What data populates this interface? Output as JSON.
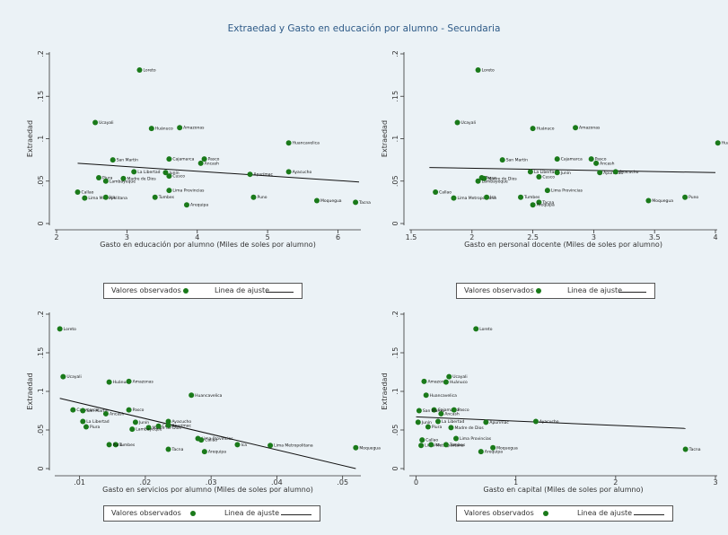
{
  "title": "Extraedad y Gasto en educación por alumno - Secundaria",
  "legend": {
    "observed": "Valores observados",
    "fit": "Linea de ajuste"
  },
  "colors": {
    "background": "#ebf2f6",
    "points": "#1a7a1a",
    "fit_line": "#111111",
    "title": "#2e5a87"
  },
  "chart_data": [
    {
      "type": "scatter",
      "xlabel": "Gasto en educación por alumno (Miles de soles por alumno)",
      "ylabel": "Extraedad",
      "xlim": [
        2,
        6.3
      ],
      "ylim": [
        0,
        0.2
      ],
      "xticks": [
        "2",
        "3",
        "4",
        "5",
        "6"
      ],
      "yticks": [
        "0",
        ".05",
        ".1",
        ".15",
        ".2"
      ],
      "fit_line": [
        [
          2.3,
          0.071
        ],
        [
          6.3,
          0.049
        ]
      ],
      "points": [
        {
          "label": "Loreto",
          "x": 3.18,
          "y": 0.181
        },
        {
          "label": "Ucayali",
          "x": 2.55,
          "y": 0.119
        },
        {
          "label": "Huánuco",
          "x": 3.35,
          "y": 0.112
        },
        {
          "label": "Amazonas",
          "x": 3.75,
          "y": 0.113
        },
        {
          "label": "Huancavelica",
          "x": 5.3,
          "y": 0.095
        },
        {
          "label": "San Martín",
          "x": 2.8,
          "y": 0.075
        },
        {
          "label": "Cajamarca",
          "x": 3.6,
          "y": 0.076
        },
        {
          "label": "Pasco",
          "x": 4.1,
          "y": 0.076
        },
        {
          "label": "Ancash",
          "x": 4.05,
          "y": 0.071
        },
        {
          "label": "La Libertad",
          "x": 3.1,
          "y": 0.061
        },
        {
          "label": "Junín",
          "x": 3.55,
          "y": 0.06
        },
        {
          "label": "Cusco",
          "x": 3.6,
          "y": 0.056
        },
        {
          "label": "Apurímac",
          "x": 4.75,
          "y": 0.058
        },
        {
          "label": "Ayacucho",
          "x": 5.3,
          "y": 0.061
        },
        {
          "label": "Piura",
          "x": 2.6,
          "y": 0.054
        },
        {
          "label": "Madre de Dios",
          "x": 2.95,
          "y": 0.053
        },
        {
          "label": "Lambayeque",
          "x": 2.7,
          "y": 0.05
        },
        {
          "label": "Lima Provincias",
          "x": 3.6,
          "y": 0.039
        },
        {
          "label": "Callao",
          "x": 2.3,
          "y": 0.037
        },
        {
          "label": "Lima Metropolitana",
          "x": 2.4,
          "y": 0.03
        },
        {
          "label": "Ica",
          "x": 2.7,
          "y": 0.031
        },
        {
          "label": "Tumbes",
          "x": 3.4,
          "y": 0.031
        },
        {
          "label": "Puno",
          "x": 4.8,
          "y": 0.031
        },
        {
          "label": "Moquegua",
          "x": 5.7,
          "y": 0.027
        },
        {
          "label": "Tacna",
          "x": 6.25,
          "y": 0.025
        },
        {
          "label": "Arequipa",
          "x": 3.85,
          "y": 0.022
        }
      ]
    },
    {
      "type": "scatter",
      "xlabel": "Gasto en personal docente (Miles de soles por alumno)",
      "ylabel": "Extraedad",
      "xlim": [
        1.5,
        4.0
      ],
      "ylim": [
        0,
        0.2
      ],
      "xticks": [
        "1.5",
        "2",
        "2.5",
        "3",
        "3.5",
        "4"
      ],
      "yticks": [
        "0",
        ".05",
        ".1",
        ".15",
        ".2"
      ],
      "fit_line": [
        [
          1.65,
          0.066
        ],
        [
          4.0,
          0.06
        ]
      ],
      "points": [
        {
          "label": "Loreto",
          "x": 2.05,
          "y": 0.181
        },
        {
          "label": "Ucayali",
          "x": 1.88,
          "y": 0.119
        },
        {
          "label": "Huánuco",
          "x": 2.5,
          "y": 0.112
        },
        {
          "label": "Amazonas",
          "x": 2.85,
          "y": 0.113
        },
        {
          "label": "Huancavelica",
          "x": 4.02,
          "y": 0.095
        },
        {
          "label": "San Martín",
          "x": 2.25,
          "y": 0.075
        },
        {
          "label": "Cajamarca",
          "x": 2.7,
          "y": 0.076
        },
        {
          "label": "Pasco",
          "x": 2.98,
          "y": 0.076
        },
        {
          "label": "Ancash",
          "x": 3.02,
          "y": 0.071
        },
        {
          "label": "La Libertad",
          "x": 2.48,
          "y": 0.061
        },
        {
          "label": "Junín",
          "x": 2.7,
          "y": 0.06
        },
        {
          "label": "Apurímac",
          "x": 3.05,
          "y": 0.06
        },
        {
          "label": "Ayacucho",
          "x": 3.18,
          "y": 0.061
        },
        {
          "label": "Cusco",
          "x": 2.55,
          "y": 0.055
        },
        {
          "label": "Piura",
          "x": 2.08,
          "y": 0.054
        },
        {
          "label": "Madre de Dios",
          "x": 2.1,
          "y": 0.053
        },
        {
          "label": "Lambayeque",
          "x": 2.05,
          "y": 0.05
        },
        {
          "label": "Lima Provincias",
          "x": 2.62,
          "y": 0.039
        },
        {
          "label": "Callao",
          "x": 1.7,
          "y": 0.037
        },
        {
          "label": "Lima Metropolitana",
          "x": 1.85,
          "y": 0.03
        },
        {
          "label": "Ica",
          "x": 2.12,
          "y": 0.031
        },
        {
          "label": "Tumbes",
          "x": 2.4,
          "y": 0.031
        },
        {
          "label": "Puno",
          "x": 3.75,
          "y": 0.031
        },
        {
          "label": "Moquegua",
          "x": 3.45,
          "y": 0.027
        },
        {
          "label": "Tacna",
          "x": 2.55,
          "y": 0.025
        },
        {
          "label": "Arequipa",
          "x": 2.5,
          "y": 0.022
        }
      ]
    },
    {
      "type": "scatter",
      "xlabel": "Gasto en servicios por alumno (Miles de soles por alumno)",
      "ylabel": "Extraedad",
      "xlim": [
        0.0065,
        0.0525
      ],
      "ylim": [
        0,
        0.2
      ],
      "xticks": [
        ".01",
        ".02",
        ".03",
        ".04",
        ".05"
      ],
      "yticks": [
        "0",
        ".05",
        ".1",
        ".15",
        ".2"
      ],
      "fit_line": [
        [
          0.007,
          0.091
        ],
        [
          0.052,
          0.0
        ]
      ],
      "points": [
        {
          "label": "Loreto",
          "x": 0.007,
          "y": 0.181
        },
        {
          "label": "Ucayali",
          "x": 0.0075,
          "y": 0.119
        },
        {
          "label": "Huánuco",
          "x": 0.0145,
          "y": 0.112
        },
        {
          "label": "Amazonas",
          "x": 0.0175,
          "y": 0.113
        },
        {
          "label": "Huancavelica",
          "x": 0.027,
          "y": 0.095
        },
        {
          "label": "Cajamarca",
          "x": 0.009,
          "y": 0.076
        },
        {
          "label": "San Martín",
          "x": 0.0105,
          "y": 0.075
        },
        {
          "label": "Pasco",
          "x": 0.0175,
          "y": 0.076
        },
        {
          "label": "Ancash",
          "x": 0.014,
          "y": 0.071
        },
        {
          "label": "La Libertad",
          "x": 0.0105,
          "y": 0.061
        },
        {
          "label": "Junín",
          "x": 0.0185,
          "y": 0.06
        },
        {
          "label": "Ayacucho",
          "x": 0.0235,
          "y": 0.061
        },
        {
          "label": "Piura",
          "x": 0.011,
          "y": 0.054
        },
        {
          "label": "Madre de Dios",
          "x": 0.0205,
          "y": 0.053
        },
        {
          "label": "Cusco",
          "x": 0.022,
          "y": 0.055
        },
        {
          "label": "Apurímac",
          "x": 0.0235,
          "y": 0.056
        },
        {
          "label": "Lambayeque",
          "x": 0.018,
          "y": 0.051
        },
        {
          "label": "Lima Provincias",
          "x": 0.028,
          "y": 0.039
        },
        {
          "label": "Callao",
          "x": 0.0285,
          "y": 0.037
        },
        {
          "label": "Lima Metropolitana",
          "x": 0.039,
          "y": 0.03
        },
        {
          "label": "Ica",
          "x": 0.034,
          "y": 0.031
        },
        {
          "label": "Tumbes",
          "x": 0.0155,
          "y": 0.031
        },
        {
          "label": "Puno",
          "x": 0.0145,
          "y": 0.031
        },
        {
          "label": "Moquegua",
          "x": 0.052,
          "y": 0.027
        },
        {
          "label": "Tacna",
          "x": 0.0235,
          "y": 0.025
        },
        {
          "label": "Arequipa",
          "x": 0.029,
          "y": 0.022
        }
      ]
    },
    {
      "type": "scatter",
      "xlabel": "Gasto en capital (Miles de soles por alumno)",
      "ylabel": "Extraedad",
      "xlim": [
        -0.05,
        3.0
      ],
      "ylim": [
        0,
        0.2
      ],
      "xticks": [
        "0",
        "1",
        "2",
        "3"
      ],
      "yticks": [
        "0",
        ".05",
        ".1",
        ".15",
        ".2"
      ],
      "fit_line": [
        [
          0.0,
          0.067
        ],
        [
          2.7,
          0.052
        ]
      ],
      "points": [
        {
          "label": "Loreto",
          "x": 0.6,
          "y": 0.181
        },
        {
          "label": "Ucayali",
          "x": 0.33,
          "y": 0.119
        },
        {
          "label": "Amazonas",
          "x": 0.08,
          "y": 0.113
        },
        {
          "label": "Huánuco",
          "x": 0.3,
          "y": 0.112
        },
        {
          "label": "Huancavelica",
          "x": 0.1,
          "y": 0.095
        },
        {
          "label": "Cajamarca",
          "x": 0.18,
          "y": 0.076
        },
        {
          "label": "Pasco",
          "x": 0.38,
          "y": 0.076
        },
        {
          "label": "San Martín",
          "x": 0.03,
          "y": 0.075
        },
        {
          "label": "Ancash",
          "x": 0.25,
          "y": 0.071
        },
        {
          "label": "La Libertad",
          "x": 0.22,
          "y": 0.061
        },
        {
          "label": "Junín",
          "x": 0.02,
          "y": 0.06
        },
        {
          "label": "Ayacucho",
          "x": 1.2,
          "y": 0.061
        },
        {
          "label": "Apurímac",
          "x": 0.7,
          "y": 0.06
        },
        {
          "label": "Piura",
          "x": 0.12,
          "y": 0.054
        },
        {
          "label": "Madre de Dios",
          "x": 0.35,
          "y": 0.053
        },
        {
          "label": "Lima Provincias",
          "x": 0.4,
          "y": 0.039
        },
        {
          "label": "Callao",
          "x": 0.06,
          "y": 0.037
        },
        {
          "label": "Lima Metropolitana",
          "x": 0.05,
          "y": 0.03
        },
        {
          "label": "Ica",
          "x": 0.15,
          "y": 0.031
        },
        {
          "label": "Tumbes",
          "x": 0.3,
          "y": 0.031
        },
        {
          "label": "Moquegua",
          "x": 0.77,
          "y": 0.027
        },
        {
          "label": "Tacna",
          "x": 2.7,
          "y": 0.025
        },
        {
          "label": "Arequipa",
          "x": 0.65,
          "y": 0.022
        }
      ]
    }
  ]
}
